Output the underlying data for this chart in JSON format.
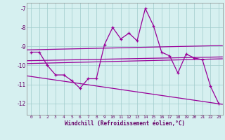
{
  "xlabel": "Windchill (Refroidissement éolien,°C)",
  "bg_color": "#d6f0f0",
  "line_color": "#990099",
  "x": [
    0,
    1,
    2,
    3,
    4,
    5,
    6,
    7,
    8,
    9,
    10,
    11,
    12,
    13,
    14,
    15,
    16,
    17,
    18,
    19,
    20,
    21,
    22,
    23
  ],
  "y_data": [
    -9.3,
    -9.3,
    -10.0,
    -10.5,
    -10.5,
    -10.8,
    -11.2,
    -10.7,
    -10.7,
    -8.9,
    -8.0,
    -8.6,
    -8.3,
    -8.7,
    -7.0,
    -7.9,
    -9.3,
    -9.5,
    -10.4,
    -9.4,
    -9.6,
    -9.7,
    -11.1,
    -12.0
  ],
  "ylim": [
    -12.6,
    -6.7
  ],
  "xlim": [
    -0.5,
    23.5
  ],
  "yticks": [
    -7,
    -8,
    -9,
    -10,
    -11,
    -12
  ],
  "xticks": [
    0,
    1,
    2,
    3,
    4,
    5,
    6,
    7,
    8,
    9,
    10,
    11,
    12,
    13,
    14,
    15,
    16,
    17,
    18,
    19,
    20,
    21,
    22,
    23
  ],
  "grid_color": "#a0cccc",
  "line1_pts": [
    [
      -0.5,
      -9.18
    ],
    [
      23.5,
      -8.95
    ]
  ],
  "line2_pts": [
    [
      -0.5,
      -9.75
    ],
    [
      23.5,
      -9.55
    ]
  ],
  "line3_pts": [
    [
      -0.5,
      -9.9
    ],
    [
      23.5,
      -9.65
    ]
  ],
  "line4_pts": [
    [
      -0.5,
      -10.55
    ],
    [
      23.5,
      -12.05
    ]
  ]
}
